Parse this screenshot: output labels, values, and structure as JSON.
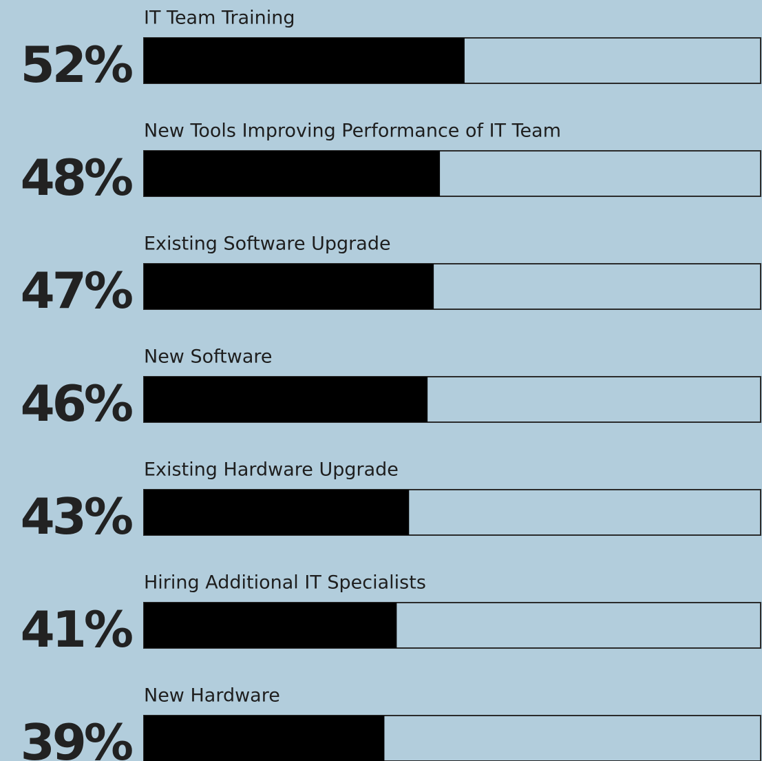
{
  "chart_data": {
    "type": "bar",
    "orientation": "horizontal",
    "categories": [
      "IT Team Training",
      "New Tools Improving Performance of IT Team",
      "Existing Software Upgrade",
      "New Software",
      "Existing Hardware Upgrade",
      "Hiring Additional IT Specialists",
      "New Hardware"
    ],
    "values": [
      52,
      48,
      47,
      46,
      43,
      41,
      39
    ],
    "value_labels": [
      "52%",
      "48%",
      "47%",
      "46%",
      "43%",
      "41%",
      "39%"
    ],
    "color": "#000000",
    "xlim": [
      0,
      100
    ]
  }
}
